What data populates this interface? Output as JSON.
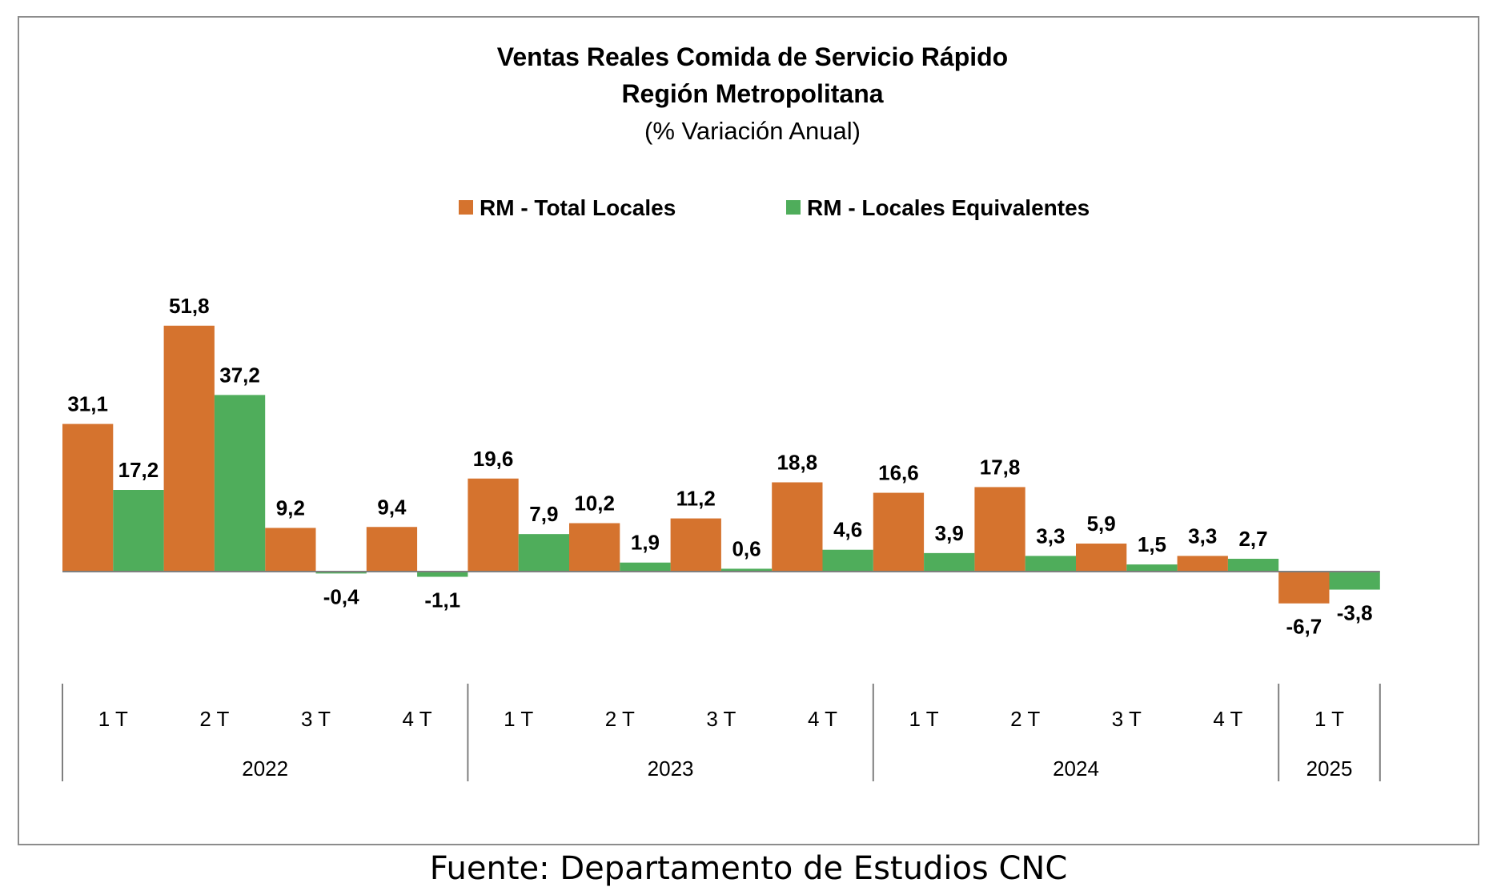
{
  "chart_data": {
    "type": "bar",
    "title": "Ventas Reales Comida de Servicio Rápido",
    "subtitle_lines": [
      "Región Metropolitana",
      "(% Variación Anual)"
    ],
    "categories": [
      "1 T",
      "2 T",
      "3 T",
      "4 T",
      "1 T",
      "2 T",
      "3 T",
      "4 T",
      "1 T",
      "2 T",
      "3 T",
      "4 T",
      "1 T"
    ],
    "groups": [
      {
        "label": "2022",
        "count": 4
      },
      {
        "label": "2023",
        "count": 4
      },
      {
        "label": "2024",
        "count": 4
      },
      {
        "label": "2025",
        "count": 1
      }
    ],
    "series": [
      {
        "name": "RM - Total Locales",
        "color": "#d5732e",
        "values": [
          31.1,
          51.8,
          9.2,
          9.4,
          19.6,
          10.2,
          11.2,
          18.8,
          16.6,
          17.8,
          5.9,
          3.3,
          -6.7
        ],
        "labels": [
          "31,1",
          "51,8",
          "9,2",
          "9,4",
          "19,6",
          "10,2",
          "11,2",
          "18,8",
          "16,6",
          "17,8",
          "5,9",
          "3,3",
          "-6,7"
        ]
      },
      {
        "name": "RM - Locales Equivalentes",
        "color": "#4fad5b",
        "values": [
          17.2,
          37.2,
          -0.4,
          -1.1,
          7.9,
          1.9,
          0.6,
          4.6,
          3.9,
          3.3,
          1.5,
          2.7,
          -3.8
        ],
        "labels": [
          "17,2",
          "37,2",
          "-0,4",
          "-1,1",
          "7,9",
          "1,9",
          "0,6",
          "4,6",
          "3,9",
          "3,3",
          "1,5",
          "2,7",
          "-3,8"
        ]
      }
    ],
    "ylim": [
      -15,
      60
    ],
    "grid": false,
    "legend_position": "top-center"
  },
  "source_note": "Fuente: Departamento de Estudios CNC"
}
